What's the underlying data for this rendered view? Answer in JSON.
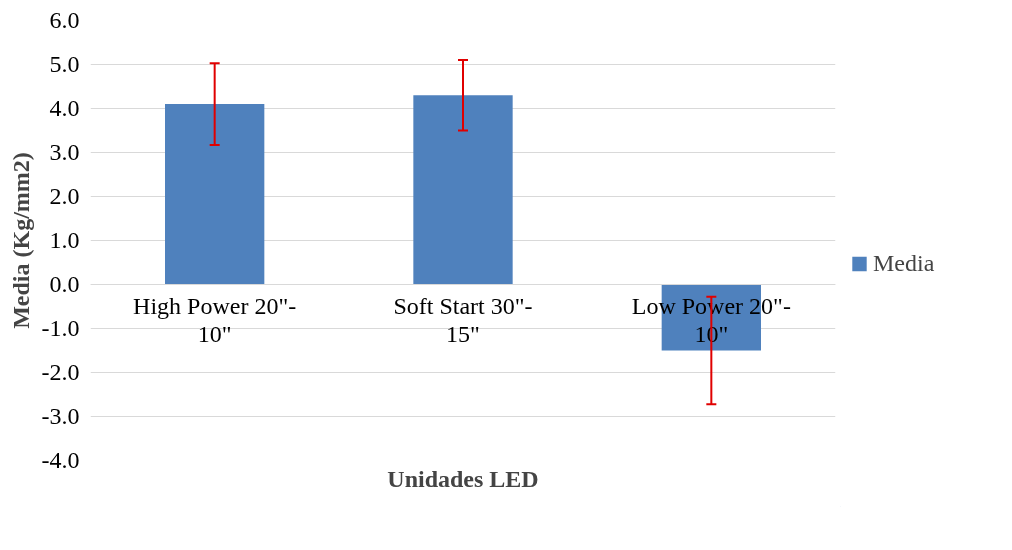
{
  "chart_data": {
    "type": "bar",
    "xlabel": "Unidades LED",
    "ylabel": "Media (Kg/mm2)",
    "categories": [
      "High Power 20\"-10\"",
      "Soft Start 30\"-15\"",
      "Low Power 20\"-10\""
    ],
    "series": [
      {
        "name": "Media",
        "color": "#4f81bd",
        "values": [
          4.1,
          4.3,
          -1.5
        ],
        "errors": [
          0.93,
          0.8,
          1.22
        ]
      }
    ],
    "ylim": [
      -4,
      6
    ],
    "yticks": [
      {
        "value": -4,
        "label": "-4.0"
      },
      {
        "value": -3,
        "label": "-3.0"
      },
      {
        "value": -2,
        "label": "-2.0"
      },
      {
        "value": -1,
        "label": "-1.0"
      },
      {
        "value": 0,
        "label": "0.0"
      },
      {
        "value": 1,
        "label": "1.0"
      },
      {
        "value": 2,
        "label": "2.0"
      },
      {
        "value": 3,
        "label": "3.0"
      },
      {
        "value": 4,
        "label": "4.0"
      },
      {
        "value": 5,
        "label": "5.0"
      },
      {
        "value": 6,
        "label": "6.0"
      }
    ],
    "grid": "y",
    "legend": "right"
  }
}
